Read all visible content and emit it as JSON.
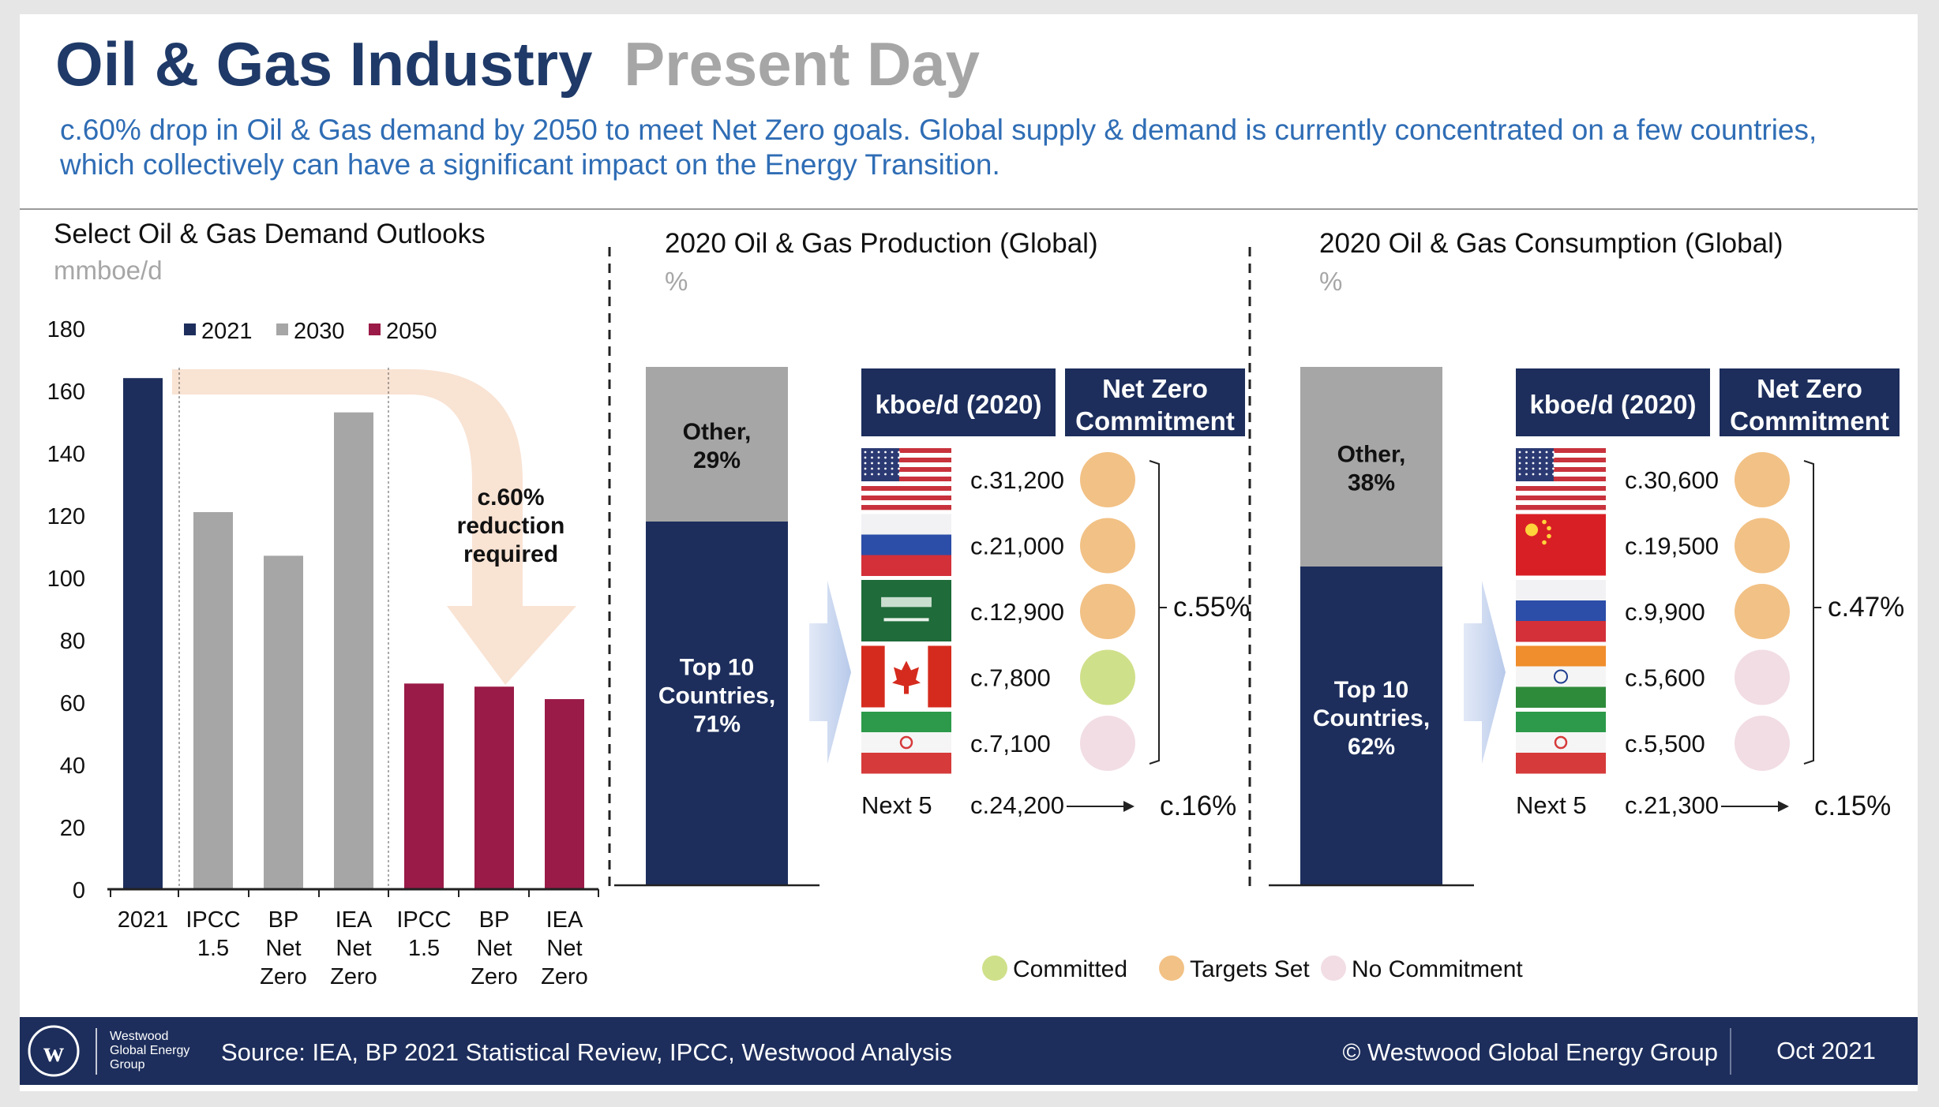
{
  "header": {
    "title_main": "Oil & Gas Industry",
    "title_accent": "Present Day",
    "subtitle_line1": "c.60% drop in Oil & Gas demand by 2050 to meet Net Zero goals. Global supply & demand is currently concentrated on a few countries,",
    "subtitle_line2": "which collectively can have a significant impact on the Energy Transition."
  },
  "colors": {
    "navy": "#1d2e5c",
    "grey": "#a6a6a6",
    "crimson": "#9a1b47",
    "title_blue": "#1f3a68",
    "title_grey": "#a6a6a6",
    "subtitle_blue": "#2f6db5",
    "committed": "#cfe08a",
    "targets_set": "#f2c185",
    "no_commitment": "#f2dde4",
    "arrow_fill": "#f9e3d3",
    "footer": "#1d2e5c"
  },
  "chart_data": [
    {
      "type": "bar",
      "title": "Select Oil & Gas Demand Outlooks",
      "ylabel": "mmboe/d",
      "ylim": [
        0,
        180
      ],
      "yticks": [
        "0",
        "20",
        "40",
        "60",
        "80",
        "100",
        "120",
        "140",
        "160",
        "180"
      ],
      "legend": [
        "2021",
        "2030",
        "2050"
      ],
      "categories": [
        [
          "2021"
        ],
        [
          "IPCC",
          "1.5"
        ],
        [
          "BP",
          "Net",
          "Zero"
        ],
        [
          "IEA",
          "Net",
          "Zero"
        ],
        [
          "IPCC",
          "1.5"
        ],
        [
          "BP",
          "Net",
          "Zero"
        ],
        [
          "IEA",
          "Net",
          "Zero"
        ]
      ],
      "series_index": [
        0,
        1,
        1,
        1,
        2,
        2,
        2
      ],
      "values": [
        164,
        121,
        107,
        153,
        66,
        65,
        61
      ],
      "annotation": [
        "c.60%",
        "reduction",
        "required"
      ]
    },
    {
      "type": "stacked-bar",
      "title": "2020 Oil & Gas Production (Global)",
      "ylabel": "%",
      "segments": [
        {
          "name": "Top 10 Countries",
          "value": 71,
          "label": [
            "Top 10",
            "Countries,",
            "71%"
          ]
        },
        {
          "name": "Other",
          "value": 29,
          "label": [
            "Other,",
            "29%"
          ]
        }
      ],
      "table_header": [
        "kboe/d (2020)",
        [
          "Net Zero",
          "Commitment"
        ]
      ],
      "countries": [
        {
          "flag": "us-flag-icon",
          "value": "c.31,200",
          "status": "targets_set"
        },
        {
          "flag": "russia-flag-icon",
          "value": "c.21,000",
          "status": "targets_set"
        },
        {
          "flag": "saudi-flag-icon",
          "value": "c.12,900",
          "status": "targets_set"
        },
        {
          "flag": "canada-flag-icon",
          "value": "c.7,800",
          "status": "committed"
        },
        {
          "flag": "iran-flag-icon",
          "value": "c.7,100",
          "status": "no_commitment"
        }
      ],
      "group_share": "c.55%",
      "next5_label": "Next 5",
      "next5_value": "c.24,200",
      "next5_share": "c.16%"
    },
    {
      "type": "stacked-bar",
      "title": "2020 Oil & Gas Consumption (Global)",
      "ylabel": "%",
      "segments": [
        {
          "name": "Top 10 Countries",
          "value": 62,
          "label": [
            "Top 10",
            "Countries,",
            "62%"
          ]
        },
        {
          "name": "Other",
          "value": 38,
          "label": [
            "Other,",
            "38%"
          ]
        }
      ],
      "table_header": [
        "kboe/d (2020)",
        [
          "Net Zero",
          "Commitment"
        ]
      ],
      "countries": [
        {
          "flag": "us-flag-icon",
          "value": "c.30,600",
          "status": "targets_set"
        },
        {
          "flag": "china-flag-icon",
          "value": "c.19,500",
          "status": "targets_set"
        },
        {
          "flag": "russia-flag-icon",
          "value": "c.9,900",
          "status": "targets_set"
        },
        {
          "flag": "india-flag-icon",
          "value": "c.5,600",
          "status": "no_commitment"
        },
        {
          "flag": "iran-flag-icon",
          "value": "c.5,500",
          "status": "no_commitment"
        }
      ],
      "group_share": "c.47%",
      "next5_label": "Next 5",
      "next5_value": "c.21,300",
      "next5_share": "c.15%"
    }
  ],
  "status_legend": [
    {
      "key": "committed",
      "label": "Committed"
    },
    {
      "key": "targets_set",
      "label": "Targets Set"
    },
    {
      "key": "no_commitment",
      "label": "No Commitment"
    }
  ],
  "footer": {
    "logo_letter": "w",
    "logo_lines": [
      "Westwood",
      "Global Energy",
      "Group"
    ],
    "source": "Source: IEA, BP 2021 Statistical Review, IPCC, Westwood Analysis",
    "copyright": "© Westwood Global Energy Group",
    "date": "Oct 2021"
  }
}
